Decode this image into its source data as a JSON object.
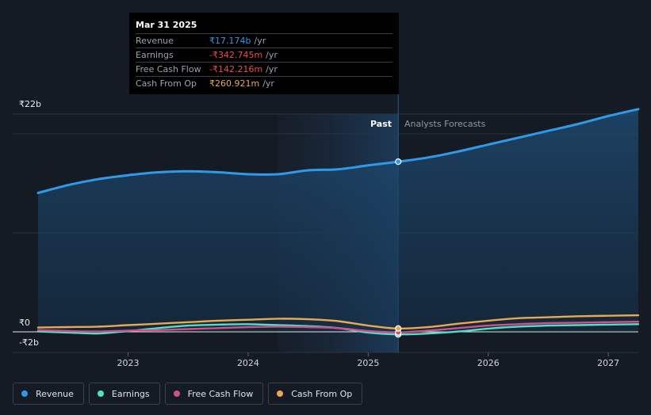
{
  "tooltip": {
    "date": "Mar 31 2025",
    "rows": [
      {
        "label": "Revenue",
        "value": "₹17.174b",
        "unit": "/yr",
        "color": "#2f9be8"
      },
      {
        "label": "Earnings",
        "value": "-₹342.745m",
        "unit": "/yr",
        "color": "#f04b4b"
      },
      {
        "label": "Free Cash Flow",
        "value": "-₹142.216m",
        "unit": "/yr",
        "color": "#f04b4b"
      },
      {
        "label": "Cash From Op",
        "value": "₹260.921m",
        "unit": "/yr",
        "color": "#e8a94f"
      }
    ]
  },
  "section_labels": {
    "past": "Past",
    "forecast": "Analysts Forecasts"
  },
  "legend": [
    {
      "label": "Revenue",
      "color": "#2f9be8"
    },
    {
      "label": "Earnings",
      "color": "#4fe0c8"
    },
    {
      "label": "Free Cash Flow",
      "color": "#d0508a"
    },
    {
      "label": "Cash From Op",
      "color": "#e8a94f"
    }
  ],
  "chart_data": {
    "type": "line",
    "y_ticks": [
      {
        "value": 22,
        "label": "₹22b"
      },
      {
        "value": 0,
        "label": "₹0"
      },
      {
        "value": -2,
        "label": "-₹2b"
      }
    ],
    "ylim": [
      -2,
      22
    ],
    "xlim": [
      2022.25,
      2027.25
    ],
    "x_ticks": [
      {
        "value": 2023,
        "label": "2023"
      },
      {
        "value": 2024,
        "label": "2024"
      },
      {
        "value": 2025,
        "label": "2025"
      },
      {
        "value": 2026,
        "label": "2026"
      },
      {
        "value": 2027,
        "label": "2027"
      }
    ],
    "past_start": 2024.25,
    "divider": 2025.25,
    "series": [
      {
        "name": "Revenue",
        "color": "#2f9be8",
        "points": [
          [
            2022.25,
            14.0
          ],
          [
            2022.5,
            14.8
          ],
          [
            2022.75,
            15.4
          ],
          [
            2023.0,
            15.8
          ],
          [
            2023.25,
            16.1
          ],
          [
            2023.5,
            16.2
          ],
          [
            2023.75,
            16.1
          ],
          [
            2024.0,
            15.9
          ],
          [
            2024.25,
            15.9
          ],
          [
            2024.5,
            16.3
          ],
          [
            2024.75,
            16.4
          ],
          [
            2025.0,
            16.8
          ],
          [
            2025.25,
            17.17
          ],
          [
            2025.5,
            17.6
          ],
          [
            2025.75,
            18.2
          ],
          [
            2026.0,
            18.9
          ],
          [
            2026.25,
            19.6
          ],
          [
            2026.5,
            20.3
          ],
          [
            2026.75,
            21.0
          ],
          [
            2027.0,
            21.8
          ],
          [
            2027.25,
            22.5
          ]
        ]
      },
      {
        "name": "Earnings",
        "color": "#4fe0c8",
        "points": [
          [
            2022.25,
            -0.05
          ],
          [
            2022.5,
            -0.15
          ],
          [
            2022.75,
            -0.25
          ],
          [
            2023.0,
            0.0
          ],
          [
            2023.25,
            0.3
          ],
          [
            2023.5,
            0.55
          ],
          [
            2023.75,
            0.65
          ],
          [
            2024.0,
            0.7
          ],
          [
            2024.25,
            0.6
          ],
          [
            2024.5,
            0.5
          ],
          [
            2024.75,
            0.3
          ],
          [
            2025.0,
            -0.15
          ],
          [
            2025.25,
            -0.34
          ],
          [
            2025.5,
            -0.25
          ],
          [
            2025.75,
            -0.05
          ],
          [
            2026.0,
            0.25
          ],
          [
            2026.25,
            0.45
          ],
          [
            2026.5,
            0.55
          ],
          [
            2026.75,
            0.6
          ],
          [
            2027.0,
            0.65
          ],
          [
            2027.25,
            0.7
          ]
        ]
      },
      {
        "name": "Free Cash Flow",
        "color": "#d0508a",
        "points": [
          [
            2022.25,
            0.1
          ],
          [
            2022.5,
            0.0
          ],
          [
            2022.75,
            -0.05
          ],
          [
            2023.0,
            0.05
          ],
          [
            2023.25,
            0.1
          ],
          [
            2023.5,
            0.2
          ],
          [
            2023.75,
            0.3
          ],
          [
            2024.0,
            0.4
          ],
          [
            2024.25,
            0.45
          ],
          [
            2024.5,
            0.4
          ],
          [
            2024.75,
            0.3
          ],
          [
            2025.0,
            0.0
          ],
          [
            2025.25,
            -0.14
          ],
          [
            2025.5,
            0.05
          ],
          [
            2025.75,
            0.3
          ],
          [
            2026.0,
            0.55
          ],
          [
            2026.25,
            0.7
          ],
          [
            2026.5,
            0.8
          ],
          [
            2026.75,
            0.85
          ],
          [
            2027.0,
            0.9
          ],
          [
            2027.25,
            0.95
          ]
        ]
      },
      {
        "name": "Cash From Op",
        "color": "#e8a94f",
        "points": [
          [
            2022.25,
            0.35
          ],
          [
            2022.5,
            0.4
          ],
          [
            2022.75,
            0.45
          ],
          [
            2023.0,
            0.6
          ],
          [
            2023.25,
            0.75
          ],
          [
            2023.5,
            0.9
          ],
          [
            2023.75,
            1.05
          ],
          [
            2024.0,
            1.15
          ],
          [
            2024.25,
            1.25
          ],
          [
            2024.5,
            1.2
          ],
          [
            2024.75,
            1.0
          ],
          [
            2025.0,
            0.55
          ],
          [
            2025.25,
            0.26
          ],
          [
            2025.5,
            0.4
          ],
          [
            2025.75,
            0.75
          ],
          [
            2026.0,
            1.05
          ],
          [
            2026.25,
            1.3
          ],
          [
            2026.5,
            1.4
          ],
          [
            2026.75,
            1.5
          ],
          [
            2027.0,
            1.55
          ],
          [
            2027.25,
            1.6
          ]
        ]
      }
    ]
  }
}
